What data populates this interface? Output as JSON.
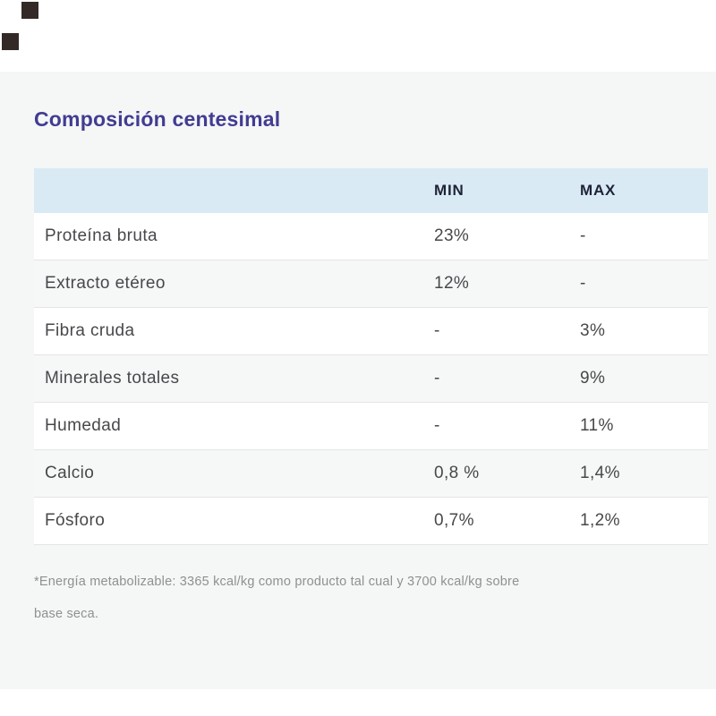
{
  "title": "Composición centesimal",
  "decor": {
    "square_color": "#332a28"
  },
  "colors": {
    "title_color": "#423c92",
    "panel_bg": "#f5f6f6",
    "header_bg": "#d9eaf5",
    "header_text": "#1f2337",
    "row_text": "#47484c",
    "row_alt_bg": "#f6f7f7",
    "separator": "#e5e5e5",
    "muted_text": "#8f9092"
  },
  "table": {
    "headers": {
      "min": "MIN",
      "max": "MAX"
    },
    "rows": [
      {
        "label": "Proteína bruta",
        "min": "23%",
        "max": "-"
      },
      {
        "label": "Extracto etéreo",
        "min": "12%",
        "max": "-"
      },
      {
        "label": "Fibra cruda",
        "min": "-",
        "max": "3%"
      },
      {
        "label": "Minerales totales",
        "min": "-",
        "max": "9%"
      },
      {
        "label": "Humedad",
        "min": "-",
        "max": "11%"
      },
      {
        "label": "Calcio",
        "min": "0,8 %",
        "max": "1,4%"
      },
      {
        "label": "Fósforo",
        "min": "0,7%",
        "max": "1,2%"
      }
    ]
  },
  "footnote": {
    "line1": "*Energía metabolizable: 3365 kcal/kg como producto tal cual y 3700 kcal/kg sobre",
    "line2": "base seca."
  }
}
